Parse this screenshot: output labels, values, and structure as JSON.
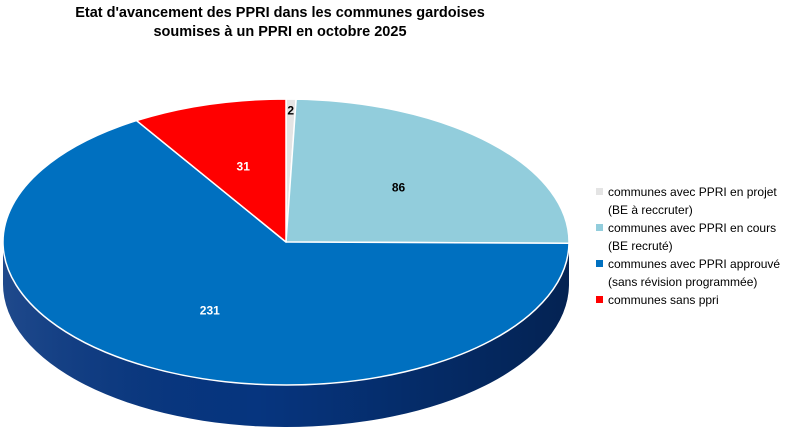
{
  "chart_data": {
    "type": "pie",
    "title": "Etat d'avancement des PPRI dans les communes gardoises",
    "subtitle": "soumises à un PPRI en octobre 2025",
    "categories": [
      "communes avec PPRI en projet\n(BE à reccruter)",
      "communes avec PPRI en cours\n(BE recruté)",
      "communes avec PPRI approuvé\n(sans révision programmée)",
      "communes sans ppri"
    ],
    "values": [
      2,
      86,
      231,
      31
    ],
    "data_labels": [
      "2",
      "86",
      "231",
      "31"
    ],
    "colors": [
      "#e4e4e4",
      "#92cddc",
      "#0070c0",
      "#ff0000"
    ],
    "side_colors": [
      "#a0a0a0",
      "#5c98a8",
      "#06357f",
      "#b00000"
    ],
    "legend_position": "right",
    "style": "3d"
  }
}
